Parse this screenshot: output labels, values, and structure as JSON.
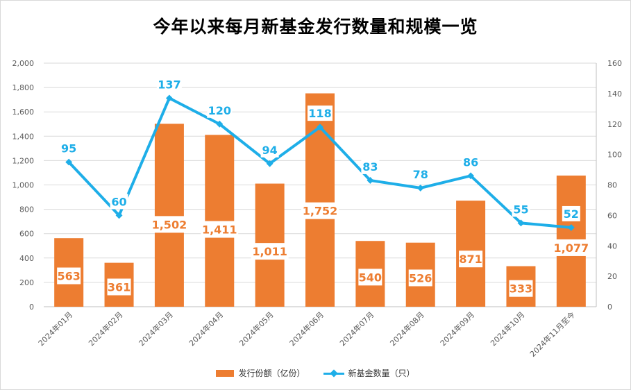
{
  "chart_data": {
    "type": "bar",
    "title": "今年以来每月新基金发行数量和规模一览",
    "categories": [
      "2024年01月",
      "2024年02月",
      "2024年03月",
      "2024年04月",
      "2024年05月",
      "2024年06月",
      "2024年07月",
      "2024年08月",
      "2024年09月",
      "2024年10月",
      "2024年11月至今"
    ],
    "series": [
      {
        "name": "发行份额（亿份）",
        "type": "bar",
        "axis": "left",
        "color": "#ed7d31",
        "values": [
          563,
          361,
          1502,
          1411,
          1011,
          1752,
          540,
          526,
          871,
          333,
          1077
        ],
        "labels": [
          "563",
          "361",
          "1,502",
          "1,411",
          "1,011",
          "1,752",
          "540",
          "526",
          "871",
          "333",
          "1,077"
        ]
      },
      {
        "name": "新基金数量（只）",
        "type": "line",
        "axis": "right",
        "color": "#1eaee8",
        "values": [
          95,
          60,
          137,
          120,
          94,
          118,
          83,
          78,
          86,
          55,
          52
        ],
        "labels": [
          "95",
          "60",
          "137",
          "120",
          "94",
          "118",
          "83",
          "78",
          "86",
          "55",
          "52"
        ]
      }
    ],
    "y_left": {
      "range": [
        0,
        2000
      ],
      "ticks": [
        0,
        200,
        400,
        600,
        800,
        1000,
        1200,
        1400,
        1600,
        1800,
        2000
      ],
      "tick_labels": [
        "0",
        "200",
        "400",
        "600",
        "800",
        "1,000",
        "1,200",
        "1,400",
        "1,600",
        "1,800",
        "2,000"
      ]
    },
    "y_right": {
      "range": [
        0,
        160
      ],
      "ticks": [
        0,
        20,
        40,
        60,
        80,
        100,
        120,
        140,
        160
      ],
      "tick_labels": [
        "0",
        "20",
        "40",
        "60",
        "80",
        "100",
        "120",
        "140",
        "160"
      ]
    },
    "grid": true,
    "legend": "bottom"
  }
}
